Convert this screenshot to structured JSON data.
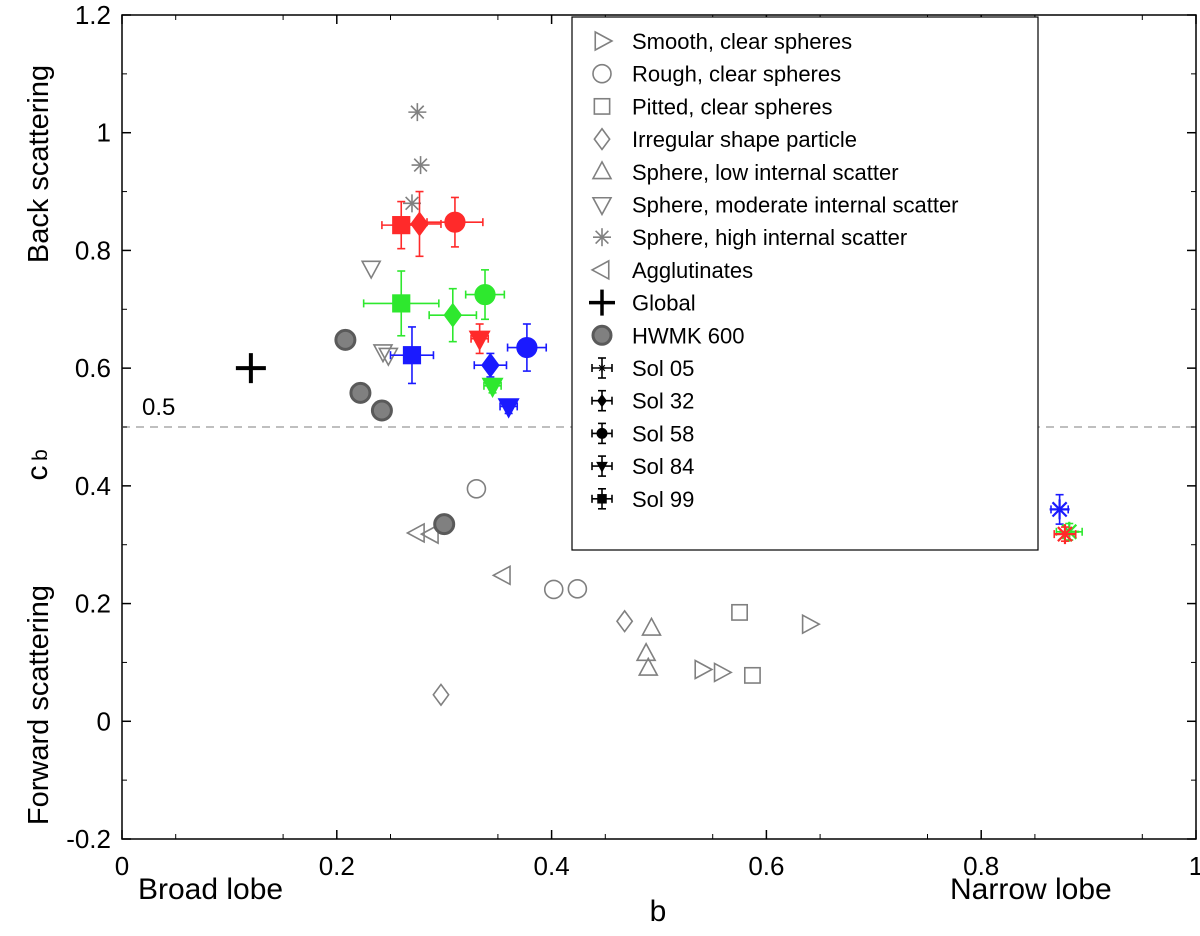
{
  "chart_data": {
    "type": "scatter",
    "xlabel": "b",
    "ylabel_main": "c",
    "ylabel_sub": "b",
    "xlim": [
      0,
      1
    ],
    "ylim": [
      -0.2,
      1.2
    ],
    "xticks": [
      "0",
      "0.2",
      "0.4",
      "0.6",
      "0.8",
      "1"
    ],
    "xtick_values": [
      0,
      0.2,
      0.4,
      0.6,
      0.8,
      1
    ],
    "yticks": [
      "-0.2",
      "0",
      "0.2",
      "0.4",
      "0.6",
      "0.8",
      "1",
      "1.2"
    ],
    "ytick_values": [
      -0.2,
      0,
      0.2,
      0.4,
      0.6,
      0.8,
      1,
      1.2
    ],
    "annotations": {
      "back_scattering": "Back scattering",
      "forward_scattering": "Forward scattering",
      "broad_lobe": "Broad lobe",
      "narrow_lobe": "Narrow lobe",
      "reference_label": "0.5",
      "reference_value": 0.5
    },
    "legend_position": "top-right",
    "legend": [
      {
        "label": "Smooth, clear spheres",
        "marker": "triangle-right"
      },
      {
        "label": "Rough, clear spheres",
        "marker": "circle"
      },
      {
        "label": "Pitted, clear spheres",
        "marker": "square"
      },
      {
        "label": "Irregular shape particle",
        "marker": "diamond"
      },
      {
        "label": "Sphere,  low internal scatter",
        "marker": "triangle-up"
      },
      {
        "label": "Sphere, moderate internal scatter",
        "marker": "triangle-down"
      },
      {
        "label": "Sphere, high internal scatter",
        "marker": "asterisk"
      },
      {
        "label": "Agglutinates",
        "marker": "triangle-left"
      },
      {
        "label": "Global",
        "marker": "plus"
      },
      {
        "label": "HWMK 600",
        "marker": "gray-circle"
      },
      {
        "label": "Sol 05",
        "marker": "errorbar-star"
      },
      {
        "label": "Sol 32",
        "marker": "errorbar-diamond"
      },
      {
        "label": "Sol 58",
        "marker": "errorbar-circle"
      },
      {
        "label": "Sol 84",
        "marker": "errorbar-triangle-down"
      },
      {
        "label": "Sol 99",
        "marker": "errorbar-square"
      }
    ],
    "colors": {
      "reference": "#ff2a2a",
      "green": "#2ee82e",
      "blue": "#1a1aff",
      "hollow": "#808080",
      "hwmk_fill": "#808080",
      "hwmk_edge": "#5a5a5a",
      "global": "#000000",
      "dashed": "#aaaaaa"
    },
    "reference_series": [
      {
        "name": "Smooth, clear spheres",
        "marker": "triangle-right",
        "points": [
          [
            0.64,
            0.165
          ],
          [
            0.54,
            0.088
          ],
          [
            0.558,
            0.083
          ]
        ]
      },
      {
        "name": "Rough, clear spheres",
        "marker": "circle",
        "points": [
          [
            0.33,
            0.395
          ],
          [
            0.402,
            0.224
          ],
          [
            0.424,
            0.225
          ]
        ]
      },
      {
        "name": "Pitted, clear spheres",
        "marker": "square",
        "points": [
          [
            0.575,
            0.185
          ],
          [
            0.587,
            0.078
          ]
        ]
      },
      {
        "name": "Irregular shape particle",
        "marker": "diamond",
        "points": [
          [
            0.468,
            0.17
          ],
          [
            0.297,
            0.045
          ]
        ]
      },
      {
        "name": "Sphere,  low internal scatter",
        "marker": "triangle-up",
        "points": [
          [
            0.493,
            0.158
          ],
          [
            0.488,
            0.115
          ],
          [
            0.49,
            0.09
          ]
        ]
      },
      {
        "name": "Sphere, moderate internal scatter",
        "marker": "triangle-down",
        "points": [
          [
            0.232,
            0.77
          ],
          [
            0.243,
            0.628
          ],
          [
            0.248,
            0.622
          ]
        ]
      },
      {
        "name": "Sphere, high internal scatter",
        "marker": "asterisk",
        "points": [
          [
            0.275,
            1.035
          ],
          [
            0.278,
            0.945
          ],
          [
            0.27,
            0.88
          ]
        ]
      },
      {
        "name": "Agglutinates",
        "marker": "triangle-left",
        "points": [
          [
            0.355,
            0.248
          ],
          [
            0.275,
            0.32
          ],
          [
            0.288,
            0.318
          ]
        ]
      }
    ],
    "global_point": {
      "name": "Global",
      "x": 0.12,
      "y": 0.6
    },
    "hwmk_points": [
      [
        0.208,
        0.648
      ],
      [
        0.222,
        0.558
      ],
      [
        0.242,
        0.528
      ],
      [
        0.3,
        0.335
      ]
    ],
    "sol_series": [
      {
        "name": "Sol 05",
        "marker": "asterisk",
        "points": [
          {
            "color": "blue",
            "x": 0.873,
            "y": 0.36,
            "xerr": 0.008,
            "yerr": 0.025
          },
          {
            "color": "green",
            "x": 0.882,
            "y": 0.322,
            "xerr": 0.012,
            "yerr": 0.014
          },
          {
            "color": "reference",
            "x": 0.878,
            "y": 0.318,
            "xerr": 0.01,
            "yerr": 0.012
          }
        ]
      },
      {
        "name": "Sol 32",
        "marker": "diamond",
        "points": [
          {
            "color": "reference",
            "x": 0.277,
            "y": 0.845,
            "xerr": 0.02,
            "yerr": 0.055
          },
          {
            "color": "green",
            "x": 0.308,
            "y": 0.69,
            "xerr": 0.022,
            "yerr": 0.045
          },
          {
            "color": "blue",
            "x": 0.343,
            "y": 0.605,
            "xerr": 0.015,
            "yerr": 0.02
          }
        ]
      },
      {
        "name": "Sol 58",
        "marker": "circle",
        "points": [
          {
            "color": "reference",
            "x": 0.31,
            "y": 0.848,
            "xerr": 0.026,
            "yerr": 0.042
          },
          {
            "color": "green",
            "x": 0.338,
            "y": 0.725,
            "xerr": 0.018,
            "yerr": 0.042
          },
          {
            "color": "blue",
            "x": 0.377,
            "y": 0.635,
            "xerr": 0.018,
            "yerr": 0.04
          }
        ]
      },
      {
        "name": "Sol 84",
        "marker": "triangle-down",
        "points": [
          {
            "color": "reference",
            "x": 0.333,
            "y": 0.65,
            "xerr": 0.008,
            "yerr": 0.025
          },
          {
            "color": "green",
            "x": 0.345,
            "y": 0.57,
            "xerr": 0.008,
            "yerr": 0.012
          },
          {
            "color": "blue",
            "x": 0.36,
            "y": 0.535,
            "xerr": 0.008,
            "yerr": 0.012
          }
        ]
      },
      {
        "name": "Sol 99",
        "marker": "square",
        "points": [
          {
            "color": "reference",
            "x": 0.26,
            "y": 0.843,
            "xerr": 0.018,
            "yerr": 0.04
          },
          {
            "color": "green",
            "x": 0.26,
            "y": 0.71,
            "xerr": 0.035,
            "yerr": 0.055
          },
          {
            "color": "blue",
            "x": 0.27,
            "y": 0.622,
            "xerr": 0.02,
            "yerr": 0.048
          }
        ]
      }
    ]
  }
}
